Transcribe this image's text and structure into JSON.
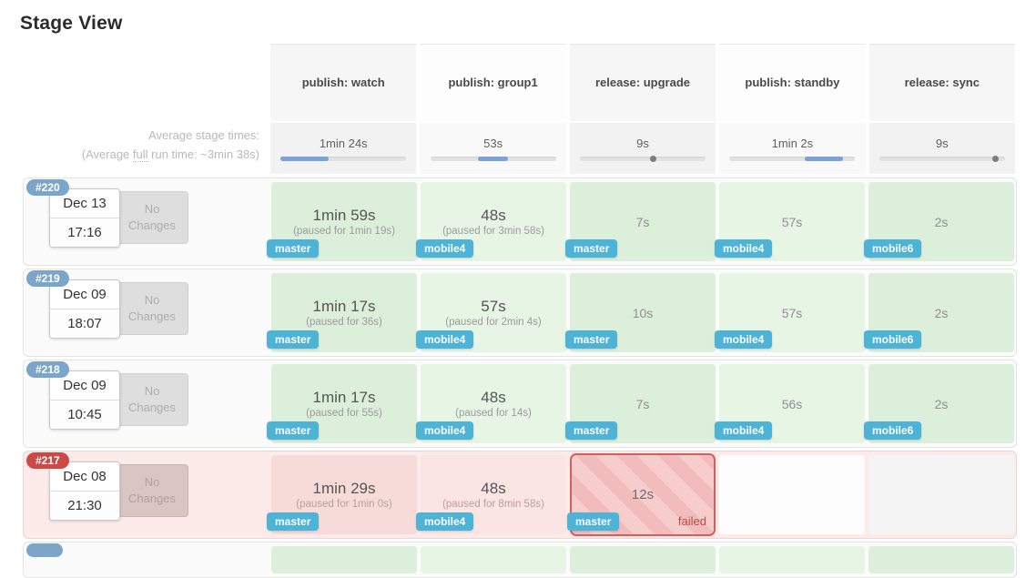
{
  "title": "Stage View",
  "average_labels": {
    "line1": "Average stage times:",
    "line2_prefix": "(Average ",
    "line2_underlined": "full",
    "line2_suffix": " run time: ~3min 38s)"
  },
  "columns": [
    {
      "label": "publish: watch",
      "avg": "1min 24s",
      "bar": {
        "type": "fill",
        "start_pct": 0,
        "end_pct": 38
      }
    },
    {
      "label": "publish: group1",
      "avg": "53s",
      "bar": {
        "type": "fill",
        "start_pct": 38,
        "end_pct": 62
      }
    },
    {
      "label": "release: upgrade",
      "avg": "9s",
      "bar": {
        "type": "dot",
        "start_pct": 58,
        "end_pct": 60
      }
    },
    {
      "label": "publish: standby",
      "avg": "1min 2s",
      "bar": {
        "type": "fill",
        "start_pct": 60,
        "end_pct": 90
      }
    },
    {
      "label": "release: sync",
      "avg": "9s",
      "bar": {
        "type": "dot",
        "start_pct": 92,
        "end_pct": 94
      }
    }
  ],
  "runs": [
    {
      "id": "#220",
      "status": "success",
      "date": "Dec 13",
      "time": "17:16",
      "changes": "No Changes",
      "stages": [
        {
          "duration": "1min 59s",
          "paused": "(paused for 1min 19s)",
          "branch": "master",
          "status": "success"
        },
        {
          "duration": "48s",
          "paused": "(paused for 3min 58s)",
          "branch": "mobile4",
          "status": "success"
        },
        {
          "duration": "7s",
          "paused": "",
          "branch": "master",
          "status": "success"
        },
        {
          "duration": "57s",
          "paused": "",
          "branch": "mobile4",
          "status": "success"
        },
        {
          "duration": "2s",
          "paused": "",
          "branch": "mobile6",
          "status": "success"
        }
      ]
    },
    {
      "id": "#219",
      "status": "success",
      "date": "Dec 09",
      "time": "18:07",
      "changes": "No Changes",
      "stages": [
        {
          "duration": "1min 17s",
          "paused": "(paused for 36s)",
          "branch": "master",
          "status": "success"
        },
        {
          "duration": "57s",
          "paused": "(paused for 2min 4s)",
          "branch": "mobile4",
          "status": "success"
        },
        {
          "duration": "10s",
          "paused": "",
          "branch": "master",
          "status": "success"
        },
        {
          "duration": "57s",
          "paused": "",
          "branch": "mobile4",
          "status": "success"
        },
        {
          "duration": "2s",
          "paused": "",
          "branch": "mobile6",
          "status": "success"
        }
      ]
    },
    {
      "id": "#218",
      "status": "success",
      "date": "Dec 09",
      "time": "10:45",
      "changes": "No Changes",
      "stages": [
        {
          "duration": "1min 17s",
          "paused": "(paused for 55s)",
          "branch": "master",
          "status": "success"
        },
        {
          "duration": "48s",
          "paused": "(paused for 14s)",
          "branch": "mobile4",
          "status": "success"
        },
        {
          "duration": "7s",
          "paused": "",
          "branch": "master",
          "status": "success"
        },
        {
          "duration": "56s",
          "paused": "",
          "branch": "mobile4",
          "status": "success"
        },
        {
          "duration": "2s",
          "paused": "",
          "branch": "mobile6",
          "status": "success"
        }
      ]
    },
    {
      "id": "#217",
      "status": "failed",
      "date": "Dec 08",
      "time": "21:30",
      "changes": "No Changes",
      "stages": [
        {
          "duration": "1min 29s",
          "paused": "(paused for 1min 0s)",
          "branch": "master",
          "status": "failed-ctx"
        },
        {
          "duration": "48s",
          "paused": "(paused for 8min 58s)",
          "branch": "mobile4",
          "status": "failed-ctx"
        },
        {
          "duration": "12s",
          "paused": "",
          "branch": "master",
          "status": "failed",
          "failed_label": "failed"
        },
        {
          "status": "empty"
        },
        {
          "status": "empty"
        }
      ]
    }
  ],
  "colors": {
    "badge_blue": "#4db3d7",
    "run_badge_blue": "#7ba5c9",
    "run_badge_red": "#cc4945",
    "success_cell": "#dcefdb",
    "success_cell_alt": "#e7f5e5",
    "success_row_bg": "#fbfbfb",
    "failed_row_bg": "#fcebe8",
    "failed_context_cell": "#f7dbd8",
    "failed_context_cell_alt": "#fae5e2",
    "failed_cell_stripe_a": "#f3bcbc",
    "failed_cell_stripe_b": "#f7cdcc",
    "failed_cell_border": "#d2605e",
    "failed_text": "#b94a48",
    "bar_fill": "#7aa2d4"
  }
}
